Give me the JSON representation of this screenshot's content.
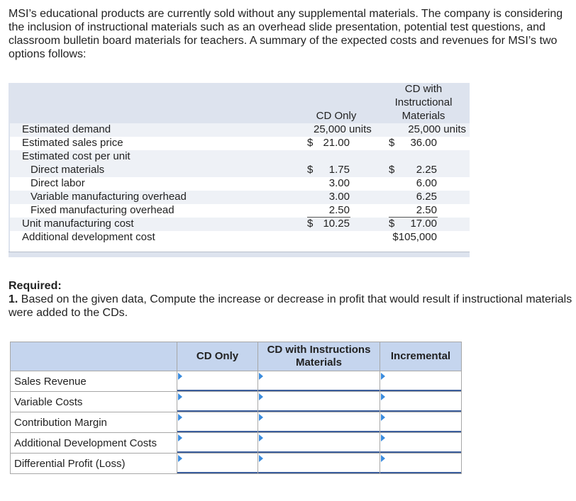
{
  "intro": "MSI’s educational products are currently sold without any supplemental materials. The company is considering the inclusion of instructional materials such as an overhead slide presentation, potential test questions, and classroom bulletin board materials for teachers. A summary of the expected costs and revenues for MSI’s two options follows:",
  "table": {
    "col1_header": "CD Only",
    "col2_header": [
      "CD with",
      "Instructional",
      "Materials"
    ],
    "rows": {
      "demand": {
        "label": "Estimated demand",
        "v1": "25,000 units",
        "v2": "25,000 units"
      },
      "price": {
        "label": "Estimated sales price",
        "s1": "$",
        "v1": "21.00",
        "s2": "$",
        "v2": "36.00"
      },
      "cost_per_unit": {
        "label": "Estimated cost per unit"
      },
      "dm": {
        "label": "Direct materials",
        "s1": "$",
        "v1": "1.75",
        "s2": "$",
        "v2": "2.25"
      },
      "dl": {
        "label": "Direct labor",
        "v1": "3.00",
        "v2": "6.00"
      },
      "vmo": {
        "label": "Variable manufacturing overhead",
        "v1": "3.00",
        "v2": "6.25"
      },
      "fmo": {
        "label": "Fixed manufacturing overhead",
        "v1": "2.50",
        "v2": "2.50"
      },
      "umc": {
        "label": "Unit manufacturing cost",
        "s1": "$",
        "v1": "10.25",
        "s2": "$",
        "v2": "17.00"
      },
      "adc": {
        "label": "Additional development cost",
        "v2": "$105,000"
      }
    }
  },
  "required": {
    "heading": "Required:",
    "number": "1.",
    "text": "Based on the given data, Compute the increase or decrease in profit that would result if instructional materials were added to the CDs."
  },
  "answer": {
    "headers": [
      "",
      "CD Only",
      "CD with Instructions Materials",
      "Incremental"
    ],
    "rows": [
      {
        "label": "Sales Revenue",
        "values": [
          "",
          "",
          ""
        ]
      },
      {
        "label": "Variable Costs",
        "values": [
          "",
          "",
          ""
        ]
      },
      {
        "label": "Contribution Margin",
        "values": [
          "",
          "",
          ""
        ]
      },
      {
        "label": "Additional Development Costs",
        "values": [
          "",
          "",
          ""
        ]
      },
      {
        "label": "Differential Profit (Loss)",
        "values": [
          "",
          "",
          ""
        ]
      }
    ]
  }
}
